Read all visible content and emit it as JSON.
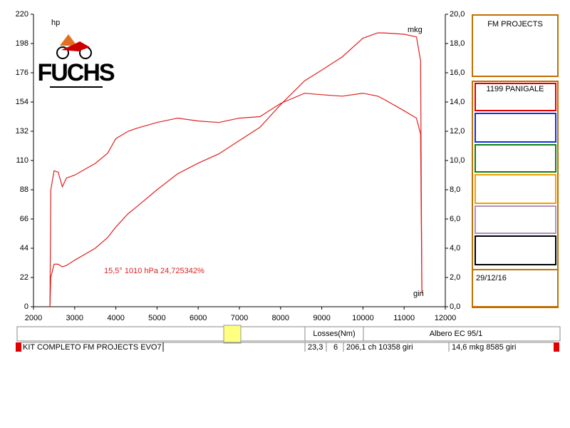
{
  "chart_data": {
    "type": "line",
    "y_label": "hp",
    "y2_label": "mkg",
    "x_label": "giri",
    "annotation": "15,5° 1010 hPa 24,725342%",
    "x": [
      2400,
      2420,
      2500,
      2600,
      2700,
      2800,
      3000,
      3500,
      3800,
      4000,
      4300,
      4500,
      5000,
      5500,
      6000,
      6500,
      7000,
      7500,
      8000,
      8585,
      9000,
      9500,
      10000,
      10358,
      10500,
      11000,
      11300,
      11400,
      11430
    ],
    "series": [
      {
        "color": "#e02020",
        "values": [
          0,
          22,
          32,
          32,
          30,
          31,
          35,
          44,
          52,
          60,
          70,
          75,
          88,
          100,
          108,
          115,
          125,
          135,
          152,
          170,
          178,
          188,
          202,
          206,
          206,
          205,
          203,
          185,
          10
        ]
      },
      {
        "color": "#e02020",
        "axis": "y2",
        "values": [
          0,
          8.0,
          9.3,
          9.2,
          8.2,
          8.8,
          9.0,
          9.8,
          10.5,
          11.5,
          12.0,
          12.2,
          12.6,
          12.9,
          12.7,
          12.6,
          12.9,
          13.0,
          13.9,
          14.6,
          14.5,
          14.4,
          14.6,
          14.4,
          14.2,
          13.4,
          12.9,
          11.8,
          1.2
        ]
      }
    ],
    "xlim": [
      2000,
      12000
    ],
    "xticks": [
      2000,
      3000,
      4000,
      5000,
      6000,
      7000,
      8000,
      9000,
      10000,
      11000,
      12000
    ],
    "ylim": [
      0,
      220
    ],
    "yticks": [
      0,
      22,
      44,
      66,
      88,
      110,
      132,
      154,
      176,
      198,
      220
    ],
    "y2lim": [
      0,
      20
    ],
    "y2ticks": [
      {
        "value": 0,
        "label": "0,0"
      },
      {
        "value": 2,
        "label": "2,0"
      },
      {
        "value": 4,
        "label": "4,0"
      },
      {
        "value": 6,
        "label": "6,0"
      },
      {
        "value": 8,
        "label": "8,0"
      },
      {
        "value": 10,
        "label": "10,0"
      },
      {
        "value": 12,
        "label": "12,0"
      },
      {
        "value": 14,
        "label": "14,0"
      },
      {
        "value": 16,
        "label": "16,0"
      },
      {
        "value": 18,
        "label": "18,0"
      },
      {
        "value": 20,
        "label": "20,0"
      }
    ],
    "grid": false
  },
  "logo": "FUCHS",
  "panel": {
    "title": "FM PROJECTS",
    "model": "1199 PANIGALE",
    "date": "29/12/16"
  },
  "status": {
    "losses_label": "Losses(Nm)",
    "shaft": "Albero EC 95/1",
    "kit": "KIT COMPLETO FM PROJECTS EVO7",
    "losses": "23,3",
    "gear": "6",
    "power_peak": "206,1 ch 10358 giri",
    "torque_peak": "14,6 mkg 8585 giri"
  }
}
